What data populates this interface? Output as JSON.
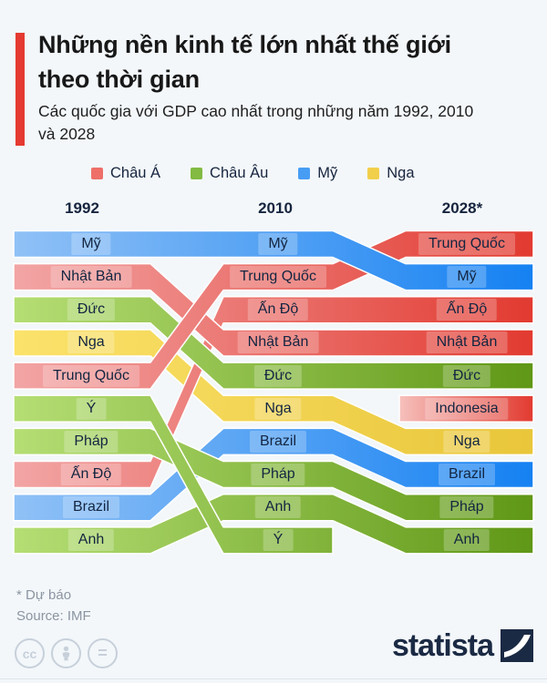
{
  "header": {
    "title_line1": "Những nền kinh tế lớn nhất thế giới",
    "title_line2": "theo thời gian",
    "subtitle_line1": "Các quốc gia với GDP cao nhất trong những năm 1992, 2010",
    "subtitle_line2": "và 2028",
    "accent_color": "#e53a31"
  },
  "legend": {
    "items": [
      {
        "label": "Châu Á",
        "color": "#ee6f68"
      },
      {
        "label": "Châu Âu",
        "color": "#82ba42"
      },
      {
        "label": "Mỹ",
        "color": "#479df4"
      },
      {
        "label": "Nga",
        "color": "#f1cf4b"
      }
    ]
  },
  "chart_data": {
    "type": "bump",
    "columns": [
      "1992",
      "2010",
      "2028*"
    ],
    "rank_range": [
      1,
      10
    ],
    "groups": [
      {
        "name": "Châu Á",
        "light": "#f2a5a5",
        "dark": "#e23a30"
      },
      {
        "name": "Châu Âu",
        "light": "#b5de74",
        "dark": "#5f9716"
      },
      {
        "name": "Mỹ",
        "light": "#90c1f6",
        "dark": "#1581f2"
      },
      {
        "name": "Nga",
        "light": "#fbe26b",
        "dark": "#e9c63a"
      }
    ],
    "new_entry_fade_light": "#f6c0bc",
    "series": [
      {
        "name": "Mỹ",
        "group": "Mỹ",
        "ranks": [
          1,
          1,
          2
        ],
        "z": 9
      },
      {
        "name": "Nhật Bản",
        "group": "Châu Á",
        "ranks": [
          2,
          4,
          4
        ],
        "z": 3
      },
      {
        "name": "Đức",
        "group": "Châu Âu",
        "ranks": [
          3,
          5,
          5
        ],
        "z": 4
      },
      {
        "name": "Nga",
        "group": "Nga",
        "ranks": [
          4,
          6,
          7
        ],
        "z": 0
      },
      {
        "name": "Trung Quốc",
        "group": "Châu Á",
        "ranks": [
          5,
          2,
          1
        ],
        "z": 5
      },
      {
        "name": "Ý",
        "group": "Châu Âu",
        "ranks": [
          6,
          10,
          null
        ],
        "z": 8
      },
      {
        "name": "Pháp",
        "group": "Châu Âu",
        "ranks": [
          7,
          8,
          9
        ],
        "z": 6
      },
      {
        "name": "Ấn Độ",
        "group": "Châu Á",
        "ranks": [
          8,
          3,
          3
        ],
        "z": 2
      },
      {
        "name": "Brazil",
        "group": "Mỹ",
        "ranks": [
          9,
          7,
          8
        ],
        "z": 1
      },
      {
        "name": "Anh",
        "group": "Châu Âu",
        "ranks": [
          10,
          9,
          10
        ],
        "z": 7
      },
      {
        "name": "Indonesia",
        "group": "Châu Á",
        "ranks": [
          null,
          null,
          6
        ],
        "z": 10
      }
    ]
  },
  "footer": {
    "note": "* Dự báo",
    "source": "Source: IMF",
    "cc_text": "cc",
    "equal_text": "="
  },
  "branding": {
    "logo_text": "statista"
  }
}
